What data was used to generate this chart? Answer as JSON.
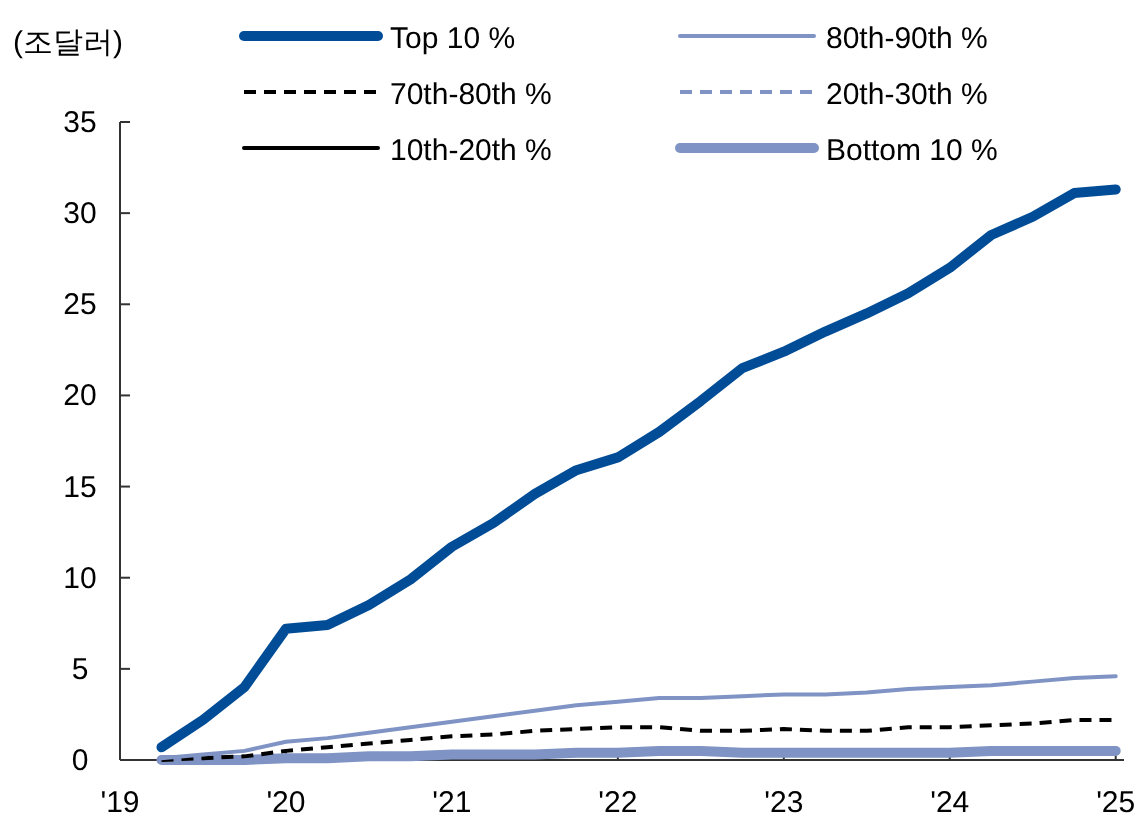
{
  "chart_data": {
    "type": "line",
    "ylabel": "(조달러)",
    "x": [
      2019.25,
      2019.5,
      2019.75,
      2020.0,
      2020.25,
      2020.5,
      2020.75,
      2021.0,
      2021.25,
      2021.5,
      2021.75,
      2022.0,
      2022.25,
      2022.5,
      2022.75,
      2023.0,
      2023.25,
      2023.5,
      2023.75,
      2024.0,
      2024.25,
      2024.5,
      2024.75,
      2025.0
    ],
    "xlim": [
      2019,
      2025.05
    ],
    "xticks": [
      {
        "value": 2019,
        "label": "'19"
      },
      {
        "value": 2020,
        "label": "'20"
      },
      {
        "value": 2021,
        "label": "'21"
      },
      {
        "value": 2022,
        "label": "'22"
      },
      {
        "value": 2023,
        "label": "'23"
      },
      {
        "value": 2024,
        "label": "'24"
      },
      {
        "value": 2025,
        "label": "'25"
      }
    ],
    "ylim": [
      0,
      35
    ],
    "yticks": [
      0,
      5,
      10,
      15,
      20,
      25,
      30,
      35
    ],
    "grid": false,
    "legend": "top",
    "series": [
      {
        "name": "Top 10 %",
        "color": "#004c97",
        "line_style": "solid",
        "values": [
          0.7,
          2.2,
          4.0,
          7.2,
          7.4,
          8.5,
          9.9,
          11.7,
          13.0,
          14.6,
          15.9,
          16.6,
          18.0,
          19.7,
          21.5,
          22.4,
          23.5,
          24.5,
          25.6,
          27.0,
          28.8,
          29.8,
          31.1,
          31.3
        ]
      },
      {
        "name": "80th-90th %",
        "color": "#7f93c4",
        "line_style": "solid",
        "values": [
          0.1,
          0.3,
          0.5,
          1.0,
          1.2,
          1.5,
          1.8,
          2.1,
          2.4,
          2.7,
          3.0,
          3.2,
          3.4,
          3.4,
          3.5,
          3.6,
          3.6,
          3.7,
          3.9,
          4.0,
          4.1,
          4.3,
          4.5,
          4.6
        ]
      },
      {
        "name": "70th-80th %",
        "color": "#000000",
        "line_style": "dashed",
        "values": [
          0.0,
          0.1,
          0.2,
          0.5,
          0.7,
          0.9,
          1.1,
          1.3,
          1.4,
          1.6,
          1.7,
          1.8,
          1.8,
          1.6,
          1.6,
          1.7,
          1.6,
          1.6,
          1.8,
          1.8,
          1.9,
          2.0,
          2.2,
          2.2
        ]
      },
      {
        "name": "20th-30th %",
        "color": "#7f93c4",
        "line_style": "dashed",
        "values": [
          null,
          null,
          null,
          null,
          null,
          null,
          null,
          null,
          null,
          null,
          null,
          null,
          null,
          null,
          null,
          null,
          null,
          null,
          null,
          null,
          null,
          null,
          null,
          null
        ]
      },
      {
        "name": "10th-20th %",
        "color": "#000000",
        "line_style": "solid",
        "values": [
          null,
          null,
          null,
          null,
          null,
          null,
          null,
          null,
          null,
          null,
          null,
          null,
          null,
          null,
          null,
          null,
          null,
          null,
          null,
          null,
          null,
          null,
          null,
          null
        ]
      },
      {
        "name": "Bottom 10 %",
        "color": "#7f93c4",
        "line_style": "solid",
        "values": [
          0.0,
          0.0,
          0.0,
          0.1,
          0.1,
          0.2,
          0.2,
          0.3,
          0.3,
          0.3,
          0.4,
          0.4,
          0.5,
          0.5,
          0.4,
          0.4,
          0.4,
          0.4,
          0.4,
          0.4,
          0.5,
          0.5,
          0.5,
          0.5
        ]
      }
    ]
  }
}
